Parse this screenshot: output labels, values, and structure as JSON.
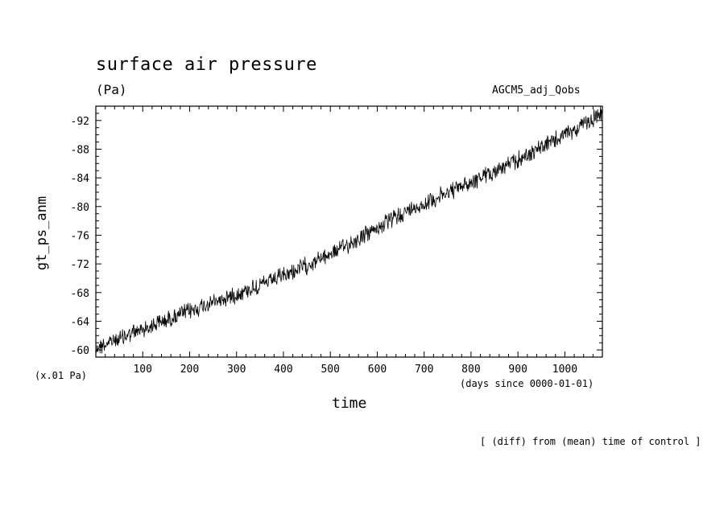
{
  "header": {
    "title": "surface air pressure",
    "units": "(Pa)",
    "run_name": "AGCM5_adj_Qobs"
  },
  "footer": {
    "note": "[ (diff) from (mean) time of control ]"
  },
  "chart_data": {
    "type": "line",
    "title": "surface air pressure",
    "units": "(Pa)",
    "ylabel": "gt_ps_anm",
    "xlabel": "time",
    "x_units": "(days since 0000-01-01)",
    "y_scale_note": "(x.01 Pa)",
    "xlim": [
      0,
      1080
    ],
    "ylim": [
      -59,
      -94
    ],
    "y_inverted": true,
    "x_ticks": [
      100,
      200,
      300,
      400,
      500,
      600,
      700,
      800,
      900,
      1000
    ],
    "x_tick_labels": [
      "100",
      "200",
      "300",
      "400",
      "500",
      "600",
      "700",
      "800",
      "900",
      "1000"
    ],
    "y_ticks": [
      -60,
      -64,
      -68,
      -72,
      -76,
      -80,
      -84,
      -88,
      -92
    ],
    "y_tick_labels": [
      "-60",
      "-64",
      "-68",
      "-72",
      "-76",
      "-80",
      "-84",
      "-88",
      "-92"
    ],
    "grid": false,
    "line_color": "#000000",
    "series": [
      {
        "x": [
          0,
          50,
          100,
          150,
          200,
          250,
          300,
          350,
          400,
          450,
          500,
          550,
          600,
          650,
          700,
          750,
          800,
          850,
          900,
          950,
          1000,
          1050,
          1080
        ],
        "values": [
          -60.3,
          -61.6,
          -62.9,
          -64.2,
          -65.4,
          -66.6,
          -67.8,
          -69.0,
          -70.3,
          -71.8,
          -73.4,
          -75.1,
          -77.0,
          -78.9,
          -80.4,
          -81.9,
          -83.4,
          -84.9,
          -86.5,
          -88.3,
          -90.0,
          -91.8,
          -93.0
        ]
      }
    ]
  }
}
